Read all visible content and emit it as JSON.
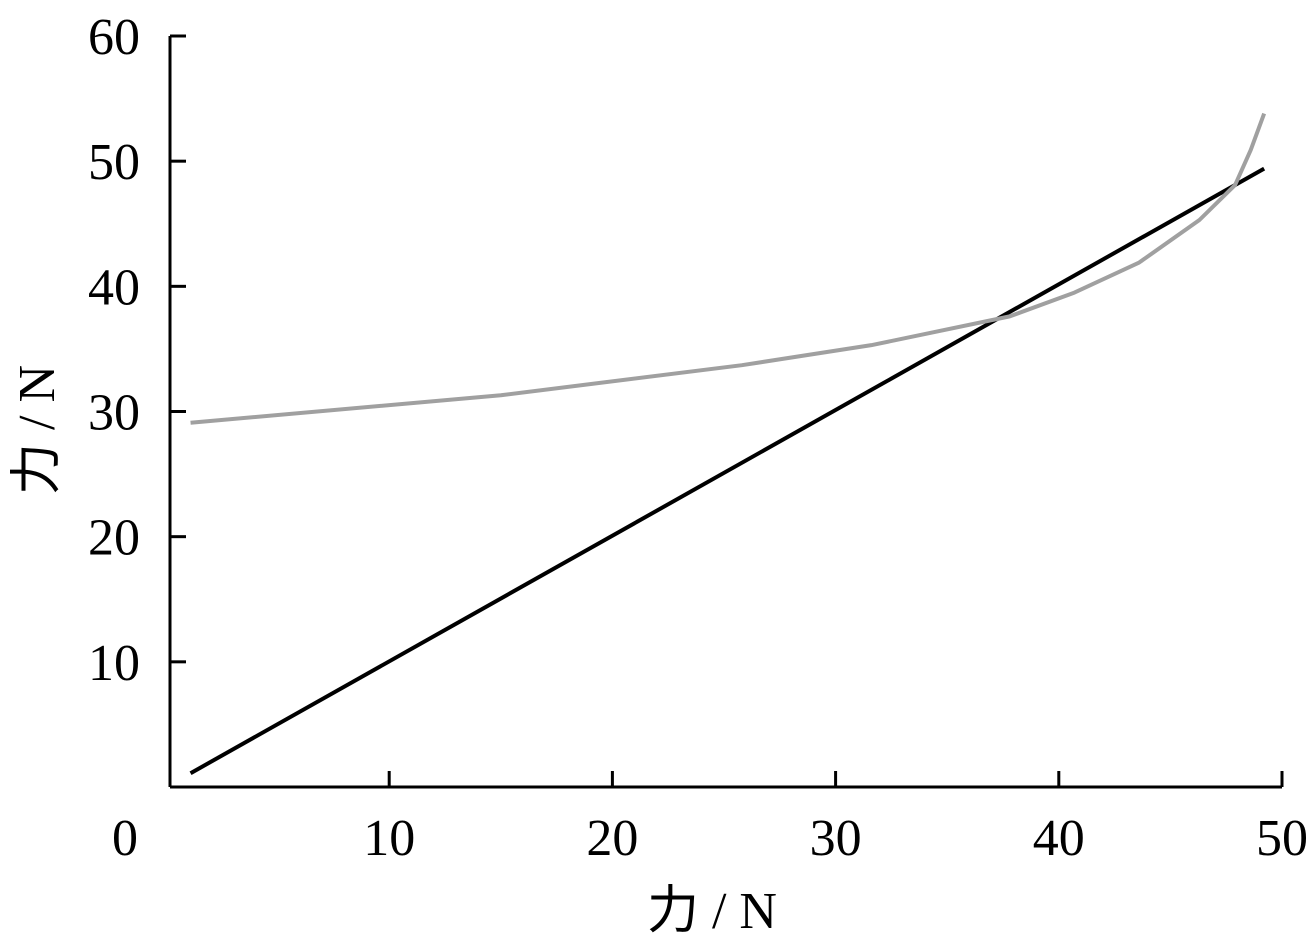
{
  "chart_data": {
    "type": "line",
    "x_label": "力 / N",
    "y_label": "力 / N",
    "xlim": [
      0,
      50
    ],
    "ylim": [
      0,
      60
    ],
    "xticks": [
      0,
      10,
      20,
      30,
      40,
      50
    ],
    "yticks": [
      10,
      20,
      30,
      40,
      50,
      60
    ],
    "series": [
      {
        "color": "#000000",
        "x": [
          1.1,
          49.2
        ],
        "values": [
          1.1,
          49.4
        ]
      },
      {
        "color": "#a0a0a0",
        "x": [
          1.1,
          15,
          25.8,
          31.6,
          37.8,
          40.7,
          43.6,
          46.3,
          47.9,
          48.6,
          49.2
        ],
        "values": [
          29.1,
          31.3,
          33.7,
          35.3,
          37.6,
          39.5,
          41.9,
          45.3,
          48.1,
          50.9,
          53.8
        ]
      }
    ]
  }
}
